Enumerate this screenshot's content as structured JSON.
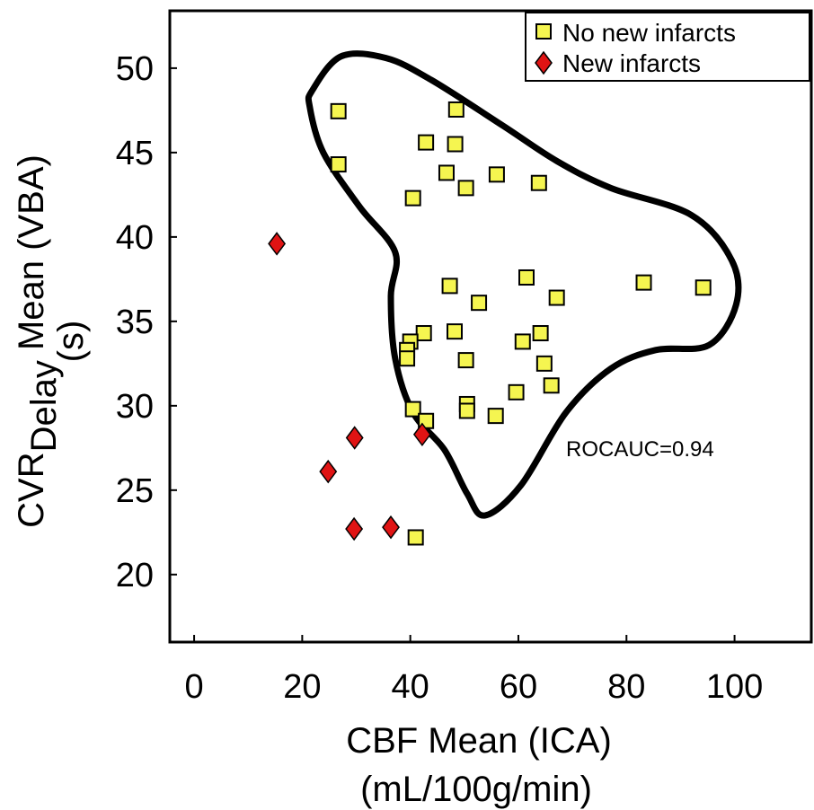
{
  "chart_data": {
    "type": "scatter",
    "title": "",
    "xlabel": "CBF Mean (ICA)",
    "xlabel_line2": "(mL/100g/min)",
    "ylabel_main": "CVR",
    "ylabel_sub": "Delay",
    "ylabel_rest": " Mean (VBA)",
    "ylabel_line2": "(s)",
    "xlim": [
      -4.5,
      114.2
    ],
    "ylim": [
      16,
      53.4
    ],
    "xticks": [
      0,
      20,
      40,
      60,
      80,
      100
    ],
    "yticks": [
      20,
      25,
      30,
      35,
      40,
      45,
      50
    ],
    "grid": false,
    "legend_position": "top-right",
    "annotation": "ROCAUC=0.94",
    "colors": {
      "no_new": "#f5f550",
      "new": "#e01414",
      "contour": "#000000"
    },
    "series": [
      {
        "name": "No new infarcts",
        "marker": "square",
        "points": [
          [
            26.7,
            47.45
          ],
          [
            26.7,
            44.3
          ],
          [
            48.5,
            47.55
          ],
          [
            42.9,
            45.6
          ],
          [
            48.3,
            45.5
          ],
          [
            46.7,
            43.8
          ],
          [
            40.5,
            42.3
          ],
          [
            50.3,
            42.9
          ],
          [
            56.0,
            43.7
          ],
          [
            63.8,
            43.2
          ],
          [
            83.2,
            37.3
          ],
          [
            94.2,
            37.0
          ],
          [
            61.5,
            37.6
          ],
          [
            67.1,
            36.4
          ],
          [
            47.3,
            37.1
          ],
          [
            52.7,
            36.1
          ],
          [
            42.5,
            34.3
          ],
          [
            40.0,
            33.8
          ],
          [
            39.4,
            33.3
          ],
          [
            39.4,
            32.8
          ],
          [
            48.2,
            34.4
          ],
          [
            50.3,
            32.7
          ],
          [
            60.8,
            33.8
          ],
          [
            64.1,
            34.3
          ],
          [
            64.8,
            32.5
          ],
          [
            66.1,
            31.2
          ],
          [
            59.6,
            30.8
          ],
          [
            50.5,
            30.1
          ],
          [
            50.5,
            29.7
          ],
          [
            55.8,
            29.4
          ],
          [
            40.5,
            29.8
          ],
          [
            42.9,
            29.1
          ],
          [
            41.0,
            22.2
          ]
        ]
      },
      {
        "name": "New infarcts",
        "marker": "diamond",
        "points": [
          [
            15.3,
            39.6
          ],
          [
            29.7,
            28.1
          ],
          [
            42.2,
            28.3
          ],
          [
            24.8,
            26.1
          ],
          [
            29.6,
            22.7
          ],
          [
            36.4,
            22.8
          ]
        ]
      }
    ],
    "decision_contour": [
      [
        21.9,
        48.7
      ],
      [
        27.2,
        50.7
      ],
      [
        35.5,
        50.6
      ],
      [
        43.9,
        49.3
      ],
      [
        57.1,
        46.6
      ],
      [
        67.1,
        44.5
      ],
      [
        77.1,
        42.9
      ],
      [
        92,
        41.3
      ],
      [
        99.5,
        38.6
      ],
      [
        100.3,
        36
      ],
      [
        95.3,
        33.6
      ],
      [
        85.4,
        33.3
      ],
      [
        77.1,
        32.2
      ],
      [
        68.8,
        29.6
      ],
      [
        60.5,
        25.3
      ],
      [
        53.8,
        23.5
      ],
      [
        50.5,
        24.8
      ],
      [
        46.3,
        27.4
      ],
      [
        40.5,
        29.6
      ],
      [
        37.2,
        32.8
      ],
      [
        36.4,
        36.5
      ],
      [
        37.2,
        39.1
      ],
      [
        30.6,
        41.8
      ],
      [
        23.9,
        45
      ],
      [
        21.4,
        47.7
      ]
    ]
  }
}
